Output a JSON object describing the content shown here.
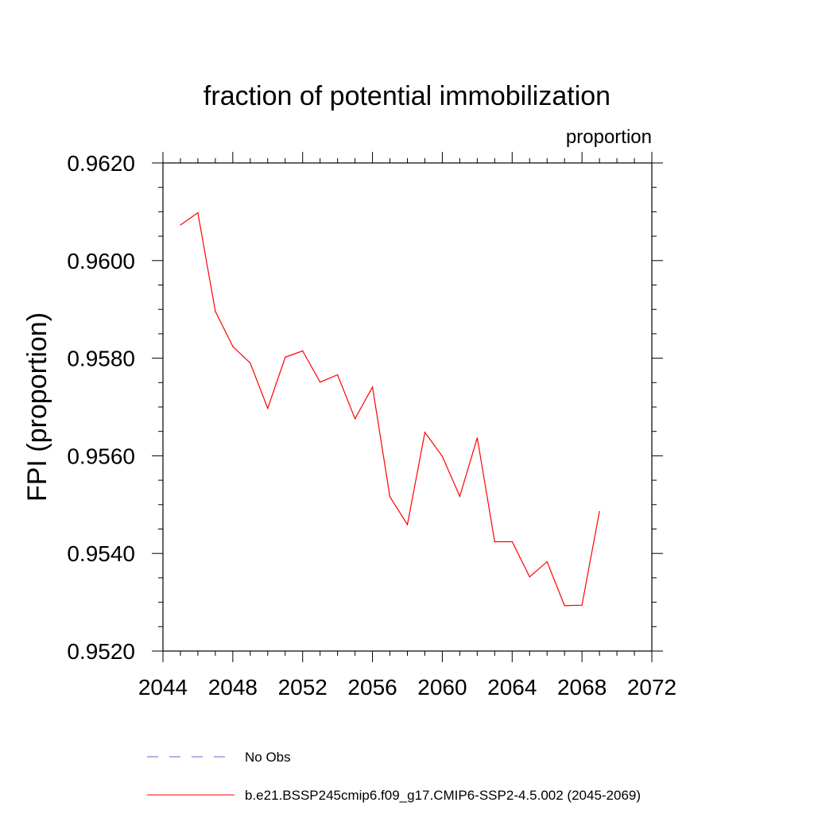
{
  "chart_data": {
    "type": "line",
    "title": "fraction of potential immobilization",
    "units_label": "proportion",
    "ylabel": "FPI  (proportion)",
    "xlabel": "",
    "xlim": [
      2044,
      2072
    ],
    "ylim": [
      0.952,
      0.962
    ],
    "x_ticks": [
      2044,
      2048,
      2052,
      2056,
      2060,
      2064,
      2068,
      2072
    ],
    "x_tick_labels": [
      "2044",
      "2048",
      "2052",
      "2056",
      "2060",
      "2064",
      "2068",
      "2072"
    ],
    "y_ticks": [
      0.952,
      0.954,
      0.956,
      0.958,
      0.96,
      0.962
    ],
    "y_tick_labels": [
      "0.9520",
      "0.9540",
      "0.9560",
      "0.9580",
      "0.9600",
      "0.9620"
    ],
    "grid": false,
    "legend_position": "bottom",
    "series": [
      {
        "name": "b.e21.BSSP245cmip6.f09_g17.CMIP6-SSP2-4.5.002 (2045-2069)",
        "color": "#ff0000",
        "style": "solid",
        "x": [
          2045,
          2046,
          2047,
          2048,
          2049,
          2050,
          2051,
          2052,
          2053,
          2054,
          2055,
          2056,
          2057,
          2058,
          2059,
          2060,
          2061,
          2062,
          2063,
          2064,
          2065,
          2066,
          2067,
          2068,
          2069
        ],
        "values": [
          0.96073,
          0.96098,
          0.95896,
          0.95824,
          0.9579,
          0.95697,
          0.95802,
          0.95815,
          0.95751,
          0.95766,
          0.95676,
          0.95741,
          0.95516,
          0.95459,
          0.95648,
          0.95599,
          0.95517,
          0.95637,
          0.95424,
          0.95424,
          0.95352,
          0.95383,
          0.95293,
          0.95294,
          0.95486
        ]
      }
    ],
    "legend": [
      {
        "label": "No Obs",
        "color": "#6666cc",
        "style": "dashed"
      },
      {
        "label": "b.e21.BSSP245cmip6.f09_g17.CMIP6-SSP2-4.5.002 (2045-2069)",
        "color": "#ff0000",
        "style": "solid"
      }
    ]
  }
}
